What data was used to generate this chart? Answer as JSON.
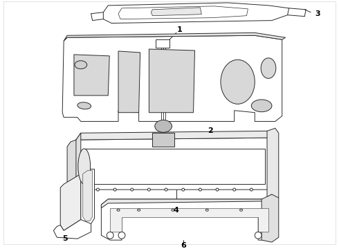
{
  "background_color": "#ffffff",
  "line_color": "#2a2a2a",
  "label_color": "#000000",
  "figsize": [
    4.9,
    3.6
  ],
  "dpi": 100,
  "line_width": 0.7,
  "label_fontsize": 7.5,
  "label_fontweight": "bold"
}
